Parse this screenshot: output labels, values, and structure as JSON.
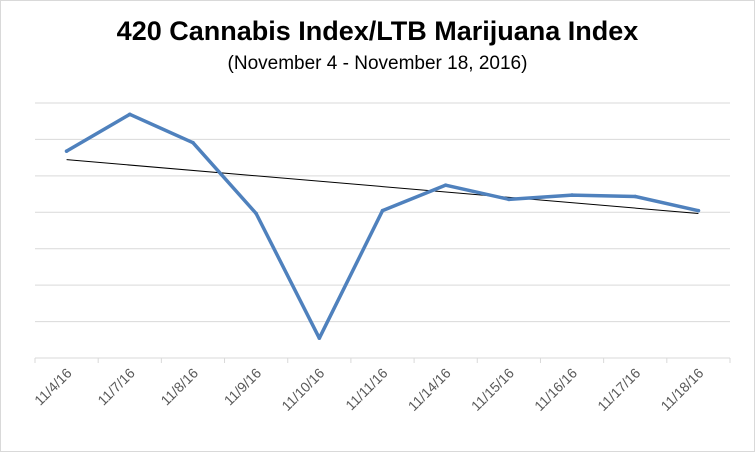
{
  "chart_data": {
    "type": "line",
    "title": "420 Cannabis Index/LTB Marijuana Index",
    "subtitle": "(November 4 - November 18, 2016)",
    "categories": [
      "11/4/16",
      "11/7/16",
      "11/8/16",
      "11/9/16",
      "11/10/16",
      "11/11/16",
      "11/14/16",
      "11/15/16",
      "11/16/16",
      "11/17/16",
      "11/18/16"
    ],
    "series": [
      {
        "values": [
          5.3,
          6.6,
          5.6,
          3.1,
          -1.3,
          3.2,
          4.1,
          3.6,
          3.75,
          3.7,
          3.2
        ],
        "color": "#4f81bd"
      }
    ],
    "trendline": {
      "type": "linear",
      "values": [
        5.0,
        3.1
      ],
      "color": "#000000"
    },
    "ylim": [
      -2,
      7
    ],
    "grid": true,
    "legend": "none",
    "y_tick_labels_shown": false
  }
}
